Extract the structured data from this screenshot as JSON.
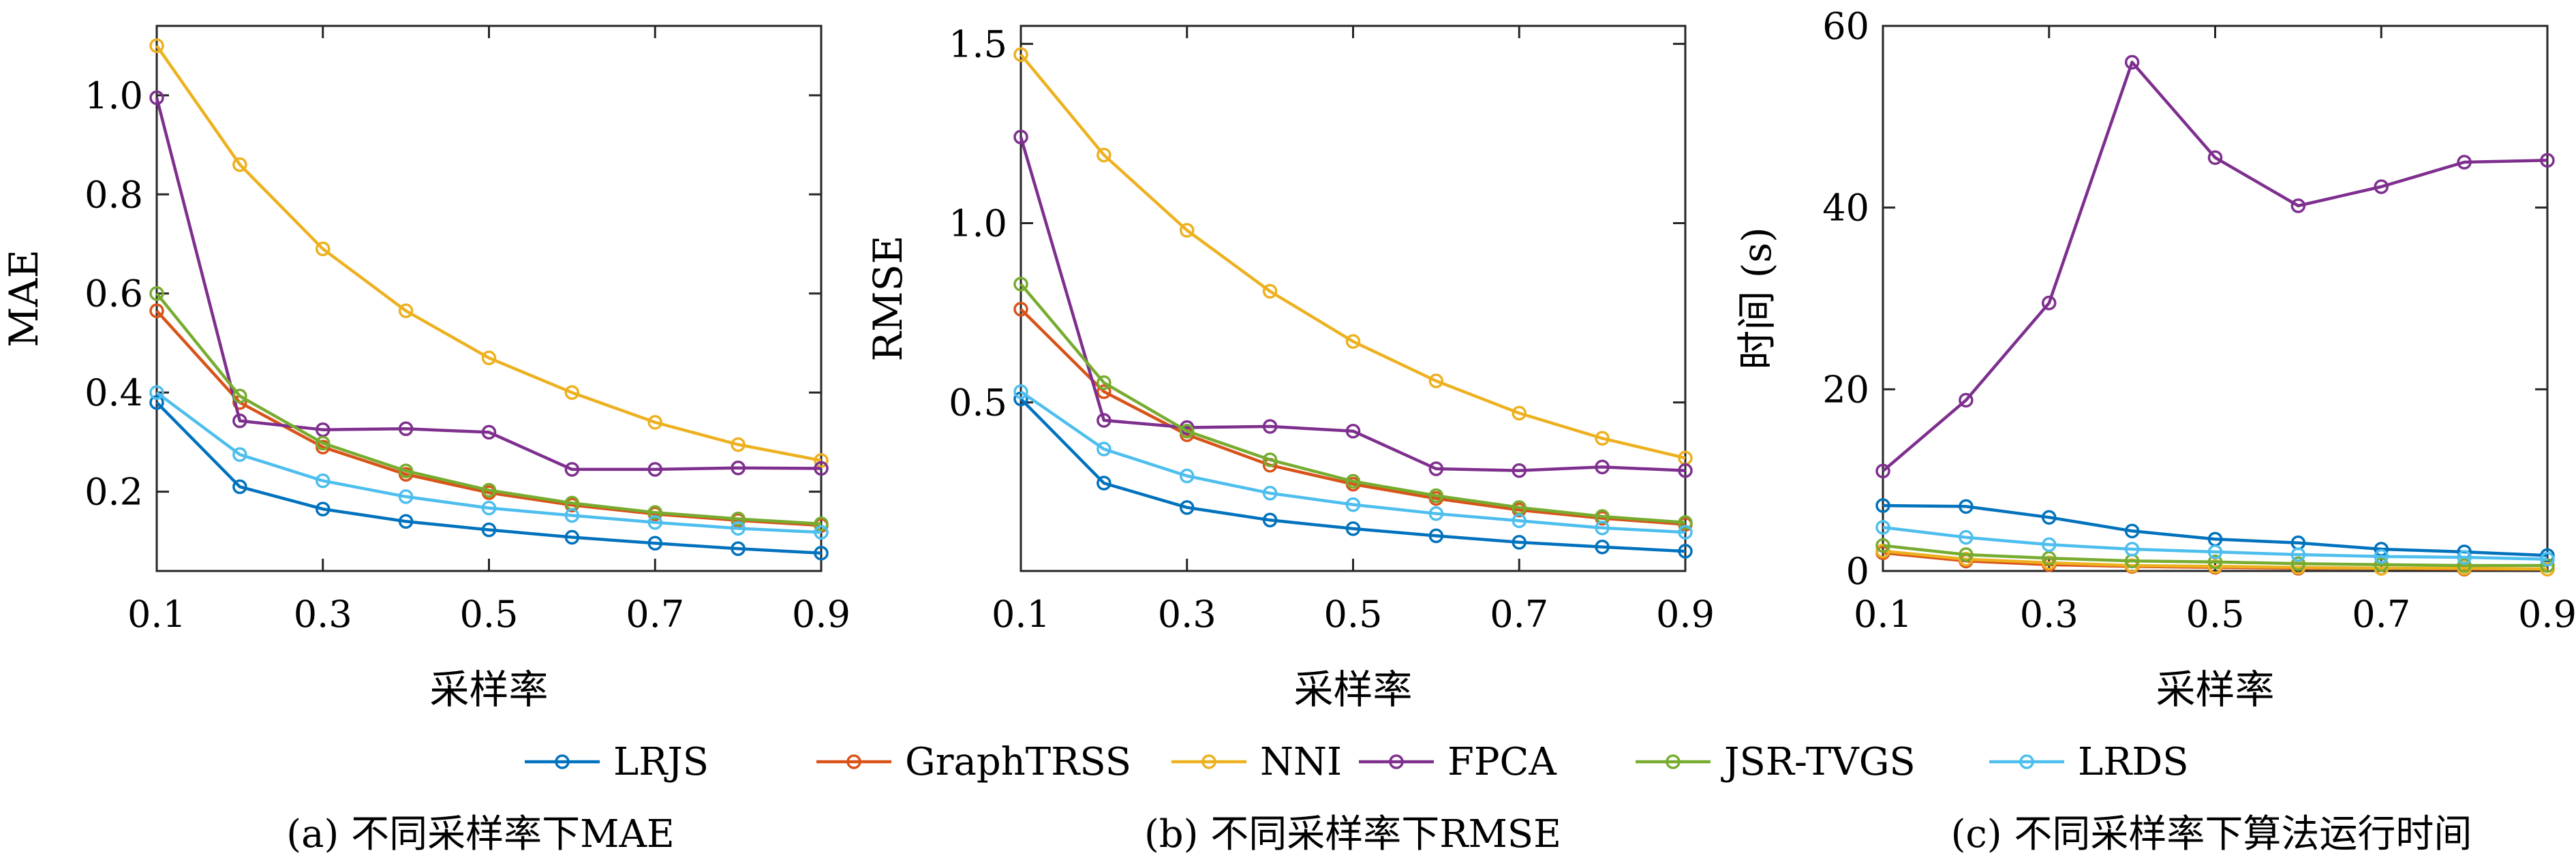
{
  "colors": {
    "LRJS": "#0072BD",
    "GraphTRSS": "#D95319",
    "NNI": "#EDB120",
    "FPCA": "#7E2F8E",
    "JSR-TVGS": "#77AC30",
    "LRDS": "#4DBEEE"
  },
  "legend": [
    "LRJS",
    "GraphTRSS",
    "NNI",
    "FPCA",
    "JSR-TVGS",
    "LRDS"
  ],
  "chart_data": [
    {
      "type": "line",
      "caption": "(a) 不同采样率下MAE",
      "xlabel": "采样率",
      "ylabel": "MAE",
      "x": [
        0.1,
        0.2,
        0.3,
        0.4,
        0.5,
        0.6,
        0.7,
        0.8,
        0.9
      ],
      "xticks": [
        "0.1",
        "0.3",
        "0.5",
        "0.7",
        "0.9"
      ],
      "xtick_values": [
        0.1,
        0.3,
        0.5,
        0.7,
        0.9
      ],
      "yticks": [
        "0.2",
        "0.4",
        "0.6",
        "0.8",
        "1.0"
      ],
      "ytick_values": [
        0.2,
        0.4,
        0.6,
        0.8,
        1.0
      ],
      "xlim": [
        0.1,
        0.9
      ],
      "ylim": [
        0.04,
        1.14
      ],
      "series": [
        {
          "name": "LRJS",
          "values": [
            0.38,
            0.21,
            0.165,
            0.14,
            0.123,
            0.108,
            0.096,
            0.085,
            0.076
          ]
        },
        {
          "name": "GraphTRSS",
          "values": [
            0.565,
            0.38,
            0.29,
            0.235,
            0.198,
            0.173,
            0.155,
            0.142,
            0.132
          ]
        },
        {
          "name": "NNI",
          "values": [
            1.1,
            0.86,
            0.69,
            0.565,
            0.47,
            0.4,
            0.34,
            0.295,
            0.263
          ]
        },
        {
          "name": "FPCA",
          "values": [
            0.995,
            0.343,
            0.325,
            0.327,
            0.32,
            0.245,
            0.245,
            0.248,
            0.247
          ]
        },
        {
          "name": "JSR-TVGS",
          "values": [
            0.6,
            0.393,
            0.298,
            0.242,
            0.203,
            0.177,
            0.158,
            0.145,
            0.135
          ]
        },
        {
          "name": "LRDS",
          "values": [
            0.4,
            0.275,
            0.222,
            0.19,
            0.167,
            0.152,
            0.138,
            0.126,
            0.118
          ]
        }
      ]
    },
    {
      "type": "line",
      "caption": "(b) 不同采样率下RMSE",
      "xlabel": "采样率",
      "ylabel": "RMSE",
      "x": [
        0.1,
        0.2,
        0.3,
        0.4,
        0.5,
        0.6,
        0.7,
        0.8,
        0.9
      ],
      "xticks": [
        "0.1",
        "0.3",
        "0.5",
        "0.7",
        "0.9"
      ],
      "xtick_values": [
        0.1,
        0.3,
        0.5,
        0.7,
        0.9
      ],
      "yticks": [
        "0.5",
        "1.0",
        "1.5"
      ],
      "ytick_values": [
        0.5,
        1.0,
        1.5
      ],
      "xlim": [
        0.1,
        0.9
      ],
      "ylim": [
        0.03,
        1.55
      ],
      "series": [
        {
          "name": "LRJS",
          "values": [
            0.51,
            0.275,
            0.207,
            0.172,
            0.148,
            0.128,
            0.11,
            0.097,
            0.085
          ]
        },
        {
          "name": "GraphTRSS",
          "values": [
            0.76,
            0.53,
            0.41,
            0.325,
            0.272,
            0.232,
            0.2,
            0.177,
            0.16
          ]
        },
        {
          "name": "NNI",
          "values": [
            1.47,
            1.19,
            0.98,
            0.81,
            0.67,
            0.56,
            0.47,
            0.4,
            0.345
          ]
        },
        {
          "name": "FPCA",
          "values": [
            1.24,
            0.45,
            0.43,
            0.433,
            0.42,
            0.315,
            0.31,
            0.32,
            0.31
          ]
        },
        {
          "name": "JSR-TVGS",
          "values": [
            0.83,
            0.555,
            0.42,
            0.34,
            0.28,
            0.24,
            0.207,
            0.182,
            0.165
          ]
        },
        {
          "name": "LRDS",
          "values": [
            0.53,
            0.37,
            0.295,
            0.247,
            0.215,
            0.19,
            0.17,
            0.15,
            0.138
          ]
        }
      ]
    },
    {
      "type": "line",
      "caption": "(c) 不同采样率下算法运行时间",
      "xlabel": "采样率",
      "ylabel": "时间 (s)",
      "x": [
        0.1,
        0.2,
        0.3,
        0.4,
        0.5,
        0.6,
        0.7,
        0.8,
        0.9
      ],
      "xticks": [
        "0.1",
        "0.3",
        "0.5",
        "0.7",
        "0.9"
      ],
      "xtick_values": [
        0.1,
        0.3,
        0.5,
        0.7,
        0.9
      ],
      "yticks": [
        "0",
        "20",
        "40",
        "60"
      ],
      "ytick_values": [
        0,
        20,
        40,
        60
      ],
      "xlim": [
        0.1,
        0.9
      ],
      "ylim": [
        0,
        60
      ],
      "series": [
        {
          "name": "LRJS",
          "values": [
            7.2,
            7.1,
            5.9,
            4.4,
            3.5,
            3.1,
            2.4,
            2.1,
            1.7
          ]
        },
        {
          "name": "GraphTRSS",
          "values": [
            2.0,
            1.1,
            0.7,
            0.5,
            0.4,
            0.3,
            0.3,
            0.2,
            0.2
          ]
        },
        {
          "name": "NNI",
          "values": [
            2.2,
            1.3,
            0.9,
            0.6,
            0.5,
            0.4,
            0.3,
            0.3,
            0.2
          ]
        },
        {
          "name": "FPCA",
          "values": [
            11.0,
            18.8,
            29.5,
            56.0,
            45.5,
            40.2,
            42.3,
            45.0,
            45.2
          ]
        },
        {
          "name": "JSR-TVGS",
          "values": [
            2.8,
            1.8,
            1.4,
            1.1,
            1.0,
            0.8,
            0.7,
            0.6,
            0.6
          ]
        },
        {
          "name": "LRDS",
          "values": [
            4.8,
            3.7,
            2.9,
            2.4,
            2.1,
            1.8,
            1.6,
            1.5,
            1.3
          ]
        }
      ]
    }
  ]
}
